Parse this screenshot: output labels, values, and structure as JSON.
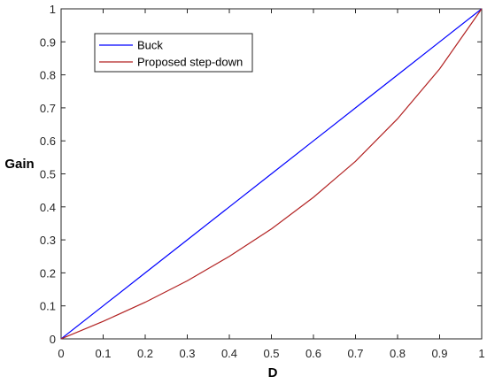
{
  "chart_data": {
    "type": "line",
    "xlabel": "D",
    "ylabel": "Gain",
    "xlim": [
      0,
      1
    ],
    "ylim": [
      0,
      1
    ],
    "x_ticks": [
      "0",
      "0.1",
      "0.2",
      "0.3",
      "0.4",
      "0.5",
      "0.6",
      "0.7",
      "0.8",
      "0.9",
      "1"
    ],
    "y_ticks": [
      "0",
      "0.1",
      "0.2",
      "0.3",
      "0.4",
      "0.5",
      "0.6",
      "0.7",
      "0.8",
      "0.9",
      "1"
    ],
    "grid": false,
    "legend_position": "top-left",
    "x": [
      0,
      0.1,
      0.2,
      0.3,
      0.4,
      0.5,
      0.6,
      0.7,
      0.8,
      0.9,
      1.0
    ],
    "series": [
      {
        "name": "Buck",
        "color": "#0000ff",
        "values": [
          0,
          0.1,
          0.2,
          0.3,
          0.4,
          0.5,
          0.6,
          0.7,
          0.8,
          0.9,
          1.0
        ]
      },
      {
        "name": "Proposed step-down",
        "color": "#b22222",
        "values": [
          0,
          0.053,
          0.111,
          0.176,
          0.25,
          0.333,
          0.429,
          0.538,
          0.667,
          0.818,
          1.0
        ]
      }
    ]
  }
}
